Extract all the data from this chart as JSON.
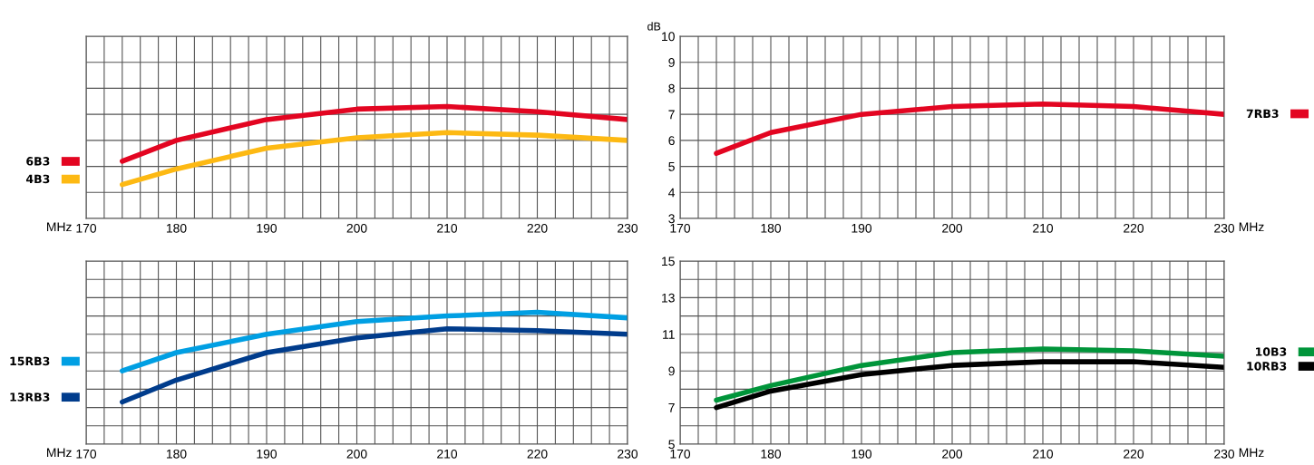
{
  "chart_data": [
    {
      "type": "line",
      "xlabel": "MHz",
      "x": [
        174,
        180,
        190,
        200,
        210,
        220,
        230
      ],
      "xlim": [
        170,
        230
      ],
      "xticks": [
        170,
        {
          "value": 172,
          "label": null
        },
        {
          "value": 174,
          "label": null
        },
        {
          "value": 176,
          "label": null
        },
        {
          "value": 178,
          "label": null
        },
        180,
        {
          "value": 182,
          "label": null
        },
        {
          "value": 184,
          "label": null
        },
        {
          "value": 186,
          "label": null
        },
        {
          "value": 188,
          "label": null
        },
        190,
        {
          "value": 192,
          "label": null
        },
        {
          "value": 194,
          "label": null
        },
        {
          "value": 196,
          "label": null
        },
        {
          "value": 198,
          "label": null
        },
        200,
        {
          "value": 202,
          "label": null
        },
        {
          "value": 204,
          "label": null
        },
        {
          "value": 206,
          "label": null
        },
        {
          "value": 208,
          "label": null
        },
        210,
        {
          "value": 212,
          "label": null
        },
        {
          "value": 214,
          "label": null
        },
        {
          "value": 216,
          "label": null
        },
        {
          "value": 218,
          "label": null
        },
        220,
        {
          "value": 222,
          "label": null
        },
        {
          "value": 224,
          "label": null
        },
        {
          "value": 226,
          "label": null
        },
        {
          "value": 228,
          "label": null
        },
        230
      ],
      "ylim": [
        3,
        10
      ],
      "yticks": [
        3,
        4,
        5,
        6,
        7,
        8,
        9,
        10
      ],
      "tick_labels": "x",
      "grid": true,
      "legend": "left",
      "series": [
        {
          "name": "6B3",
          "color": "#e30521",
          "values": [
            5.2,
            6.0,
            6.8,
            7.2,
            7.3,
            7.1,
            6.8
          ]
        },
        {
          "name": "4B3",
          "color": "#fdb913",
          "values": [
            4.3,
            4.9,
            5.7,
            6.1,
            6.3,
            6.2,
            6.0
          ]
        }
      ]
    },
    {
      "type": "line",
      "xlabel": "MHz",
      "ylabel": "dB",
      "x": [
        174,
        180,
        190,
        200,
        210,
        220,
        230
      ],
      "xlim": [
        170,
        230
      ],
      "xticks": [
        170,
        {
          "value": 172,
          "label": null
        },
        {
          "value": 174,
          "label": null
        },
        {
          "value": 176,
          "label": null
        },
        {
          "value": 178,
          "label": null
        },
        180,
        {
          "value": 182,
          "label": null
        },
        {
          "value": 184,
          "label": null
        },
        {
          "value": 186,
          "label": null
        },
        {
          "value": 188,
          "label": null
        },
        190,
        {
          "value": 192,
          "label": null
        },
        {
          "value": 194,
          "label": null
        },
        {
          "value": 196,
          "label": null
        },
        {
          "value": 198,
          "label": null
        },
        200,
        {
          "value": 202,
          "label": null
        },
        {
          "value": 204,
          "label": null
        },
        {
          "value": 206,
          "label": null
        },
        {
          "value": 208,
          "label": null
        },
        210,
        {
          "value": 212,
          "label": null
        },
        {
          "value": 214,
          "label": null
        },
        {
          "value": 216,
          "label": null
        },
        {
          "value": 218,
          "label": null
        },
        220,
        {
          "value": 222,
          "label": null
        },
        {
          "value": 224,
          "label": null
        },
        {
          "value": 226,
          "label": null
        },
        {
          "value": 228,
          "label": null
        },
        230
      ],
      "ylim": [
        3,
        10
      ],
      "yticks": [
        3,
        4,
        5,
        6,
        7,
        8,
        9,
        10
      ],
      "grid": true,
      "legend": "right",
      "series": [
        {
          "name": "7RB3",
          "color": "#e30521",
          "values": [
            5.5,
            6.3,
            7.0,
            7.3,
            7.4,
            7.3,
            7.0
          ]
        }
      ]
    },
    {
      "type": "line",
      "xlabel": "MHz",
      "x": [
        174,
        180,
        190,
        200,
        210,
        220,
        230
      ],
      "xlim": [
        170,
        230
      ],
      "xticks": [
        170,
        {
          "value": 172,
          "label": null
        },
        {
          "value": 174,
          "label": null
        },
        {
          "value": 176,
          "label": null
        },
        {
          "value": 178,
          "label": null
        },
        180,
        {
          "value": 182,
          "label": null
        },
        {
          "value": 184,
          "label": null
        },
        {
          "value": 186,
          "label": null
        },
        {
          "value": 188,
          "label": null
        },
        190,
        {
          "value": 192,
          "label": null
        },
        {
          "value": 194,
          "label": null
        },
        {
          "value": 196,
          "label": null
        },
        {
          "value": 198,
          "label": null
        },
        200,
        {
          "value": 202,
          "label": null
        },
        {
          "value": 204,
          "label": null
        },
        {
          "value": 206,
          "label": null
        },
        {
          "value": 208,
          "label": null
        },
        210,
        {
          "value": 212,
          "label": null
        },
        {
          "value": 214,
          "label": null
        },
        {
          "value": 216,
          "label": null
        },
        {
          "value": 218,
          "label": null
        },
        220,
        {
          "value": 222,
          "label": null
        },
        {
          "value": 224,
          "label": null
        },
        {
          "value": 226,
          "label": null
        },
        {
          "value": 228,
          "label": null
        },
        230
      ],
      "ylim": [
        5,
        15
      ],
      "yticks": [
        5,
        {
          "value": 6,
          "label": null
        },
        7,
        {
          "value": 8,
          "label": null
        },
        9,
        {
          "value": 10,
          "label": null
        },
        11,
        {
          "value": 12,
          "label": null
        },
        13,
        {
          "value": 14,
          "label": null
        },
        15
      ],
      "tick_labels": "x",
      "grid": true,
      "legend": "left",
      "series": [
        {
          "name": "15RB3",
          "color": "#009fe3",
          "values": [
            9.0,
            10.0,
            11.0,
            11.7,
            12.0,
            12.2,
            11.9
          ]
        },
        {
          "name": "13RB3",
          "color": "#003c8c",
          "values": [
            7.3,
            8.5,
            10.0,
            10.8,
            11.3,
            11.2,
            11.0
          ]
        }
      ]
    },
    {
      "type": "line",
      "xlabel": "MHz",
      "x": [
        174,
        180,
        190,
        200,
        210,
        220,
        230
      ],
      "xlim": [
        170,
        230
      ],
      "xticks": [
        170,
        {
          "value": 172,
          "label": null
        },
        {
          "value": 174,
          "label": null
        },
        {
          "value": 176,
          "label": null
        },
        {
          "value": 178,
          "label": null
        },
        180,
        {
          "value": 182,
          "label": null
        },
        {
          "value": 184,
          "label": null
        },
        {
          "value": 186,
          "label": null
        },
        {
          "value": 188,
          "label": null
        },
        190,
        {
          "value": 192,
          "label": null
        },
        {
          "value": 194,
          "label": null
        },
        {
          "value": 196,
          "label": null
        },
        {
          "value": 198,
          "label": null
        },
        200,
        {
          "value": 202,
          "label": null
        },
        {
          "value": 204,
          "label": null
        },
        {
          "value": 206,
          "label": null
        },
        {
          "value": 208,
          "label": null
        },
        210,
        {
          "value": 212,
          "label": null
        },
        {
          "value": 214,
          "label": null
        },
        {
          "value": 216,
          "label": null
        },
        {
          "value": 218,
          "label": null
        },
        220,
        {
          "value": 222,
          "label": null
        },
        {
          "value": 224,
          "label": null
        },
        {
          "value": 226,
          "label": null
        },
        {
          "value": 228,
          "label": null
        },
        230
      ],
      "ylim": [
        5,
        15
      ],
      "yticks": [
        5,
        {
          "value": 6,
          "label": null
        },
        7,
        {
          "value": 8,
          "label": null
        },
        9,
        {
          "value": 10,
          "label": null
        },
        11,
        {
          "value": 12,
          "label": null
        },
        13,
        {
          "value": 14,
          "label": null
        },
        15
      ],
      "grid": true,
      "legend": "right",
      "series": [
        {
          "name": "10B3",
          "color": "#00953a",
          "values": [
            7.4,
            8.2,
            9.3,
            10.0,
            10.2,
            10.1,
            9.8
          ]
        },
        {
          "name": "10RB3",
          "color": "#000000",
          "values": [
            7.0,
            7.9,
            8.8,
            9.3,
            9.5,
            9.5,
            9.2
          ]
        }
      ]
    }
  ]
}
